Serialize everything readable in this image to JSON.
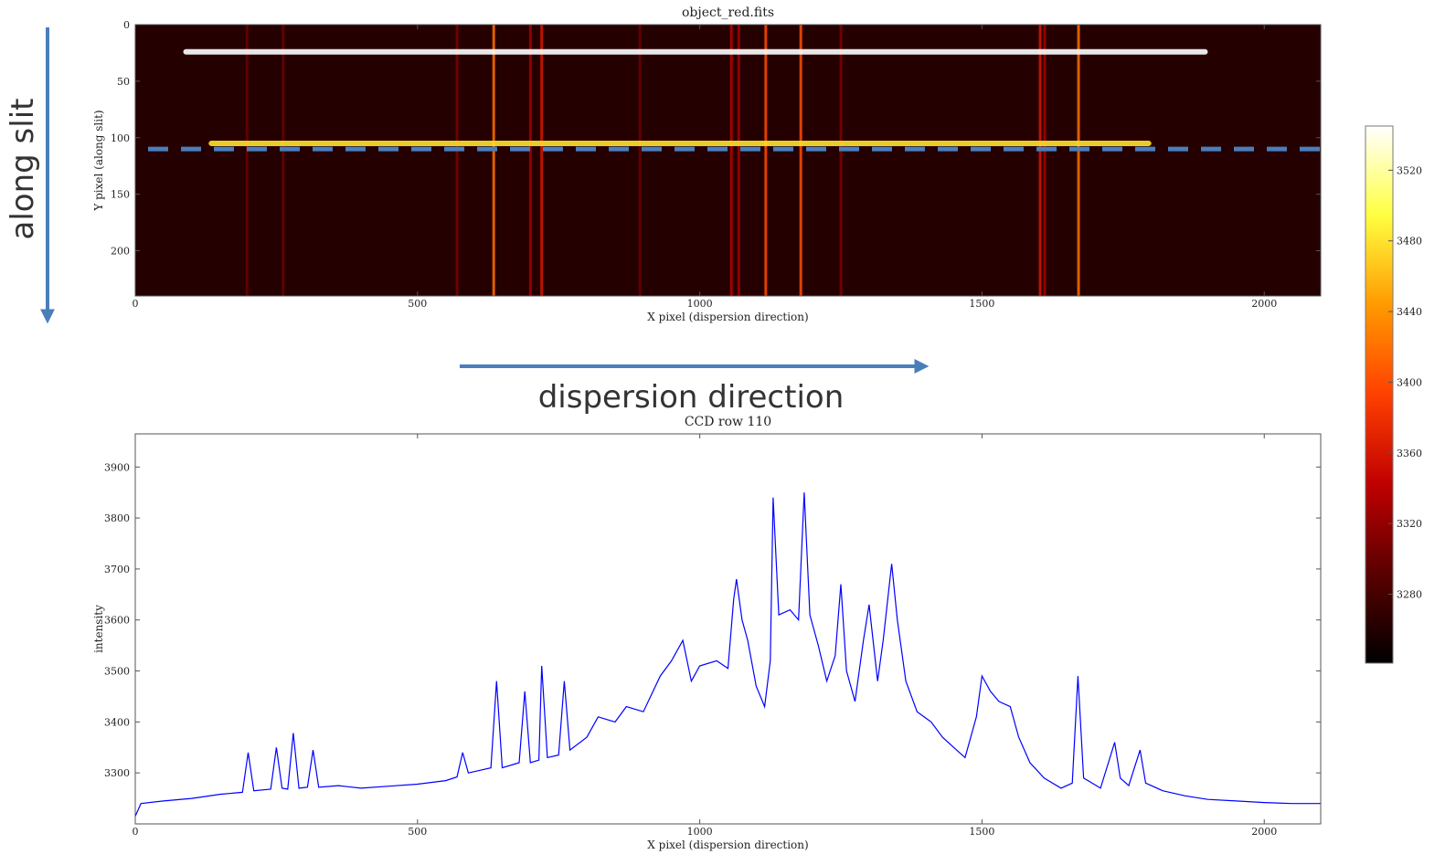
{
  "chart_data": [
    {
      "type": "image",
      "title": "object_red.fits",
      "xlabel": "X pixel (dispersion direction)",
      "ylabel": "Y pixel (along slit)",
      "xlim": [
        0,
        2100
      ],
      "ylim": [
        0,
        240
      ],
      "xticks": [
        0,
        500,
        1000,
        1500,
        2000
      ],
      "yticks": [
        0,
        50,
        100,
        150,
        200
      ],
      "background_level": 3262,
      "traces": [
        {
          "y": 24,
          "x0": 85,
          "x1": 1900,
          "level": 3545
        },
        {
          "y": 105,
          "x0": 130,
          "x1": 1800,
          "level": 3480
        }
      ],
      "emission_lines_x": [
        198,
        262,
        570,
        635,
        700,
        720,
        894,
        1056,
        1069,
        1117,
        1179,
        1250,
        1603,
        1611,
        1671
      ],
      "emission_lines_level": [
        3300,
        3300,
        3310,
        3420,
        3330,
        3360,
        3300,
        3340,
        3330,
        3400,
        3400,
        3310,
        3360,
        3330,
        3420
      ],
      "highlight_row": 110,
      "colorbar": {
        "lim": [
          3241,
          3545
        ],
        "ticks": [
          3280,
          3320,
          3360,
          3400,
          3440,
          3480,
          3520
        ],
        "colormap": [
          "#000000",
          "#5a0000",
          "#c00000",
          "#ff4000",
          "#ff9a00",
          "#ffff40",
          "#ffffff"
        ]
      }
    },
    {
      "type": "line",
      "title": "CCD row 110",
      "xlabel": "X pixel (dispersion direction)",
      "ylabel": "intensity",
      "xlim": [
        0,
        2100
      ],
      "ylim": [
        3200,
        3965
      ],
      "xticks": [
        0,
        500,
        1000,
        1500,
        2000
      ],
      "yticks": [
        3300,
        3400,
        3500,
        3600,
        3700,
        3800,
        3900
      ],
      "color": "#0000ff",
      "x": [
        0,
        10,
        50,
        100,
        150,
        190,
        200,
        210,
        240,
        250,
        260,
        270,
        280,
        290,
        305,
        315,
        325,
        360,
        400,
        450,
        500,
        550,
        570,
        580,
        590,
        610,
        630,
        640,
        650,
        680,
        690,
        700,
        715,
        720,
        730,
        750,
        760,
        770,
        800,
        820,
        850,
        870,
        900,
        930,
        950,
        970,
        985,
        1000,
        1030,
        1050,
        1060,
        1065,
        1075,
        1085,
        1100,
        1115,
        1125,
        1130,
        1140,
        1160,
        1175,
        1185,
        1195,
        1210,
        1225,
        1240,
        1250,
        1260,
        1275,
        1290,
        1300,
        1315,
        1325,
        1340,
        1350,
        1365,
        1385,
        1410,
        1430,
        1450,
        1470,
        1490,
        1500,
        1515,
        1530,
        1550,
        1565,
        1585,
        1610,
        1640,
        1660,
        1670,
        1680,
        1710,
        1735,
        1745,
        1760,
        1780,
        1790,
        1820,
        1860,
        1900,
        1950,
        2000,
        2050,
        2100
      ],
      "values": [
        3215,
        3240,
        3245,
        3250,
        3258,
        3262,
        3340,
        3265,
        3268,
        3350,
        3270,
        3268,
        3378,
        3270,
        3272,
        3345,
        3272,
        3275,
        3270,
        3274,
        3278,
        3285,
        3292,
        3340,
        3300,
        3305,
        3310,
        3480,
        3310,
        3320,
        3460,
        3320,
        3325,
        3510,
        3330,
        3335,
        3480,
        3345,
        3370,
        3410,
        3400,
        3430,
        3420,
        3490,
        3520,
        3560,
        3480,
        3510,
        3520,
        3505,
        3640,
        3680,
        3600,
        3560,
        3470,
        3430,
        3520,
        3840,
        3610,
        3620,
        3600,
        3850,
        3610,
        3550,
        3480,
        3530,
        3670,
        3500,
        3440,
        3560,
        3630,
        3480,
        3560,
        3710,
        3600,
        3480,
        3420,
        3400,
        3370,
        3350,
        3330,
        3410,
        3490,
        3460,
        3440,
        3430,
        3370,
        3320,
        3290,
        3270,
        3280,
        3490,
        3290,
        3270,
        3360,
        3290,
        3275,
        3345,
        3280,
        3265,
        3255,
        3248,
        3245,
        3242,
        3240,
        3240
      ]
    }
  ],
  "annotations": {
    "slit": "along slit",
    "dispersion": "dispersion direction"
  }
}
